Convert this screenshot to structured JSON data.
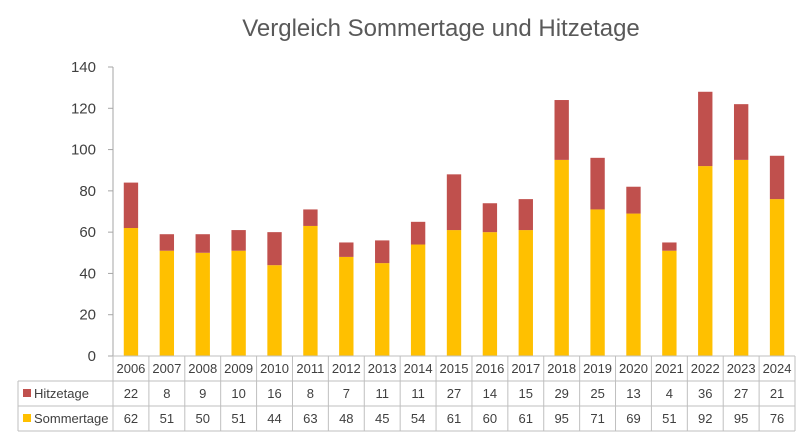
{
  "chart_data": {
    "type": "bar",
    "stacked": true,
    "title": "Vergleich Sommertage und Hitzetage",
    "categories": [
      "2006",
      "2007",
      "2008",
      "2009",
      "2010",
      "2011",
      "2012",
      "2013",
      "2014",
      "2015",
      "2016",
      "2017",
      "2018",
      "2019",
      "2020",
      "2021",
      "2022",
      "2023",
      "2024"
    ],
    "series": [
      {
        "name": "Sommertage",
        "color": "#FFC000",
        "values": [
          62,
          51,
          50,
          51,
          44,
          63,
          48,
          45,
          54,
          61,
          60,
          61,
          95,
          71,
          69,
          51,
          92,
          95,
          76
        ]
      },
      {
        "name": "Hitzetage",
        "color": "#C0504D",
        "values": [
          22,
          8,
          9,
          10,
          16,
          8,
          7,
          11,
          11,
          27,
          14,
          15,
          29,
          25,
          13,
          4,
          36,
          27,
          21
        ]
      }
    ],
    "ylim": [
      0,
      140
    ],
    "yticks": [
      "0",
      "20",
      "40",
      "60",
      "80",
      "100",
      "120",
      "140"
    ],
    "grid": false,
    "legend": "data table",
    "table_row_order": [
      "Hitzetage",
      "Sommertage"
    ]
  }
}
